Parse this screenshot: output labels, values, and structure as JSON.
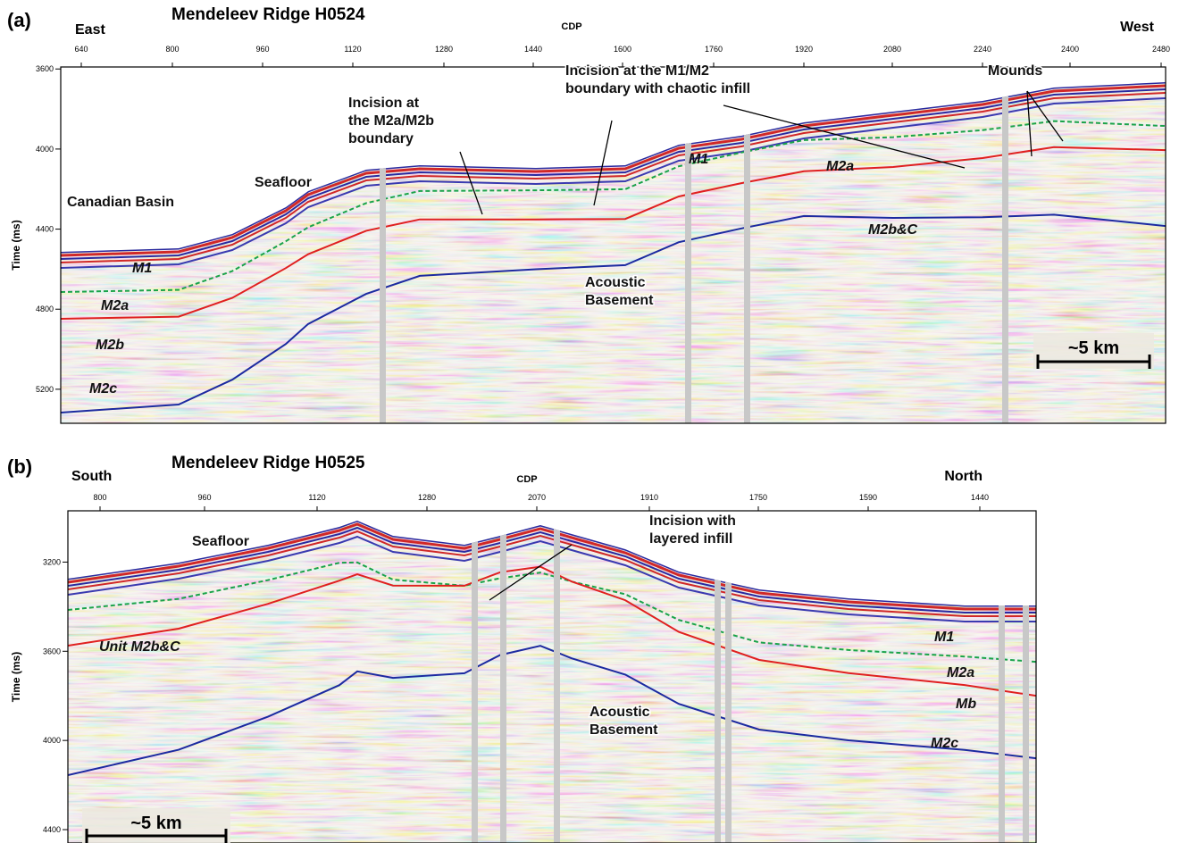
{
  "panels": [
    {
      "label": "(a)",
      "title": "Mendeleev Ridge H0524",
      "left": "East",
      "right": "West",
      "x_label": "CDP",
      "x_ticks": [
        "640",
        "800",
        "960",
        "1120",
        "1280",
        "1440",
        "1600",
        "1760",
        "1920",
        "2080",
        "2240",
        "2400",
        "2480"
      ],
      "y_label": "Time (ms)",
      "ylim": [
        3590,
        5370
      ],
      "yticks": [
        3600,
        4000,
        4400,
        4800,
        5200
      ],
      "annotations": [
        [
          "Canadian Basin"
        ],
        [
          "Seafloor"
        ],
        [
          "M1"
        ],
        [
          "M2a"
        ],
        [
          "M2b"
        ],
        [
          "M2c"
        ],
        [
          "Incision at",
          "the M2a/M2b",
          "boundary"
        ],
        [
          "Incision at the M1/M2",
          "boundary with chaotic infill"
        ],
        [
          "M1"
        ],
        [
          "M2a"
        ],
        [
          "M2b&C"
        ],
        [
          "Acoustic",
          "Basement"
        ],
        [
          "Mounds"
        ]
      ],
      "scale_bar": "~5 km"
    },
    {
      "label": "(b)",
      "title": "Mendeleev Ridge H0525",
      "left": "South",
      "right": "North",
      "x_label": "CDP",
      "x_ticks": [
        "800",
        "960",
        "1120",
        "1280",
        "2070",
        "1910",
        "1750",
        "1590",
        "1440"
      ],
      "y_label": "Time (ms)",
      "ylim": [
        2970,
        4460
      ],
      "yticks": [
        3200,
        3600,
        4000,
        4400
      ],
      "annotations": [
        [
          "Seafloor"
        ],
        [
          "Incision with",
          "layered infill"
        ],
        [
          "Unit M2b&C"
        ],
        [
          "Acoustic",
          "Basement"
        ],
        [
          "M1"
        ],
        [
          "M2a"
        ],
        [
          "Mb"
        ],
        [
          "M2c"
        ]
      ],
      "scale_bar": "~5 km"
    }
  ]
}
